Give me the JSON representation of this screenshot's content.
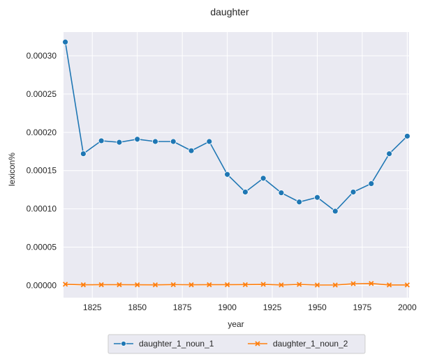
{
  "chart_data": {
    "type": "line",
    "title": "daughter",
    "xlabel": "year",
    "ylabel": "lexicon%",
    "xlim": [
      1809,
      2001
    ],
    "ylim": [
      -1.6e-05,
      0.000331
    ],
    "xticks": [
      1825,
      1850,
      1875,
      1900,
      1925,
      1950,
      1975,
      2000
    ],
    "xtick_labels": [
      "1825",
      "1850",
      "1875",
      "1900",
      "1925",
      "1950",
      "1975",
      "2000"
    ],
    "yticks": [
      0,
      5e-05,
      0.0001,
      0.00015,
      0.0002,
      0.00025,
      0.0003
    ],
    "ytick_labels": [
      "0.00000",
      "0.00005",
      "0.00010",
      "0.00015",
      "0.00020",
      "0.00025",
      "0.00030"
    ],
    "grid": true,
    "legend_position": "bottom-center",
    "series": [
      {
        "name": "daughter_1_noun_1",
        "color": "#1f77b4",
        "marker": "circle",
        "x": [
          1810,
          1820,
          1830,
          1840,
          1850,
          1860,
          1870,
          1880,
          1890,
          1900,
          1910,
          1920,
          1930,
          1940,
          1950,
          1960,
          1970,
          1980,
          1990,
          2000
        ],
        "y": [
          0.000318,
          0.000172,
          0.000189,
          0.000187,
          0.000191,
          0.000188,
          0.000188,
          0.000176,
          0.000188,
          0.000145,
          0.000122,
          0.00014,
          0.000121,
          0.000109,
          0.000115,
          9.7e-05,
          0.000122,
          0.000133,
          0.000172,
          0.000195
        ]
      },
      {
        "name": "daughter_1_noun_2",
        "color": "#ff7f0e",
        "marker": "x",
        "x": [
          1810,
          1820,
          1830,
          1840,
          1850,
          1860,
          1870,
          1880,
          1890,
          1900,
          1910,
          1920,
          1930,
          1940,
          1950,
          1960,
          1970,
          1980,
          1990,
          2000
        ],
        "y": [
          1.5e-06,
          8e-07,
          9e-07,
          9e-07,
          8e-07,
          7e-07,
          1e-06,
          8e-07,
          9e-07,
          9e-07,
          1e-06,
          1.4e-06,
          6e-07,
          1.3e-06,
          5e-07,
          5e-07,
          2.2e-06,
          2.5e-06,
          6e-07,
          6e-07
        ]
      }
    ]
  }
}
